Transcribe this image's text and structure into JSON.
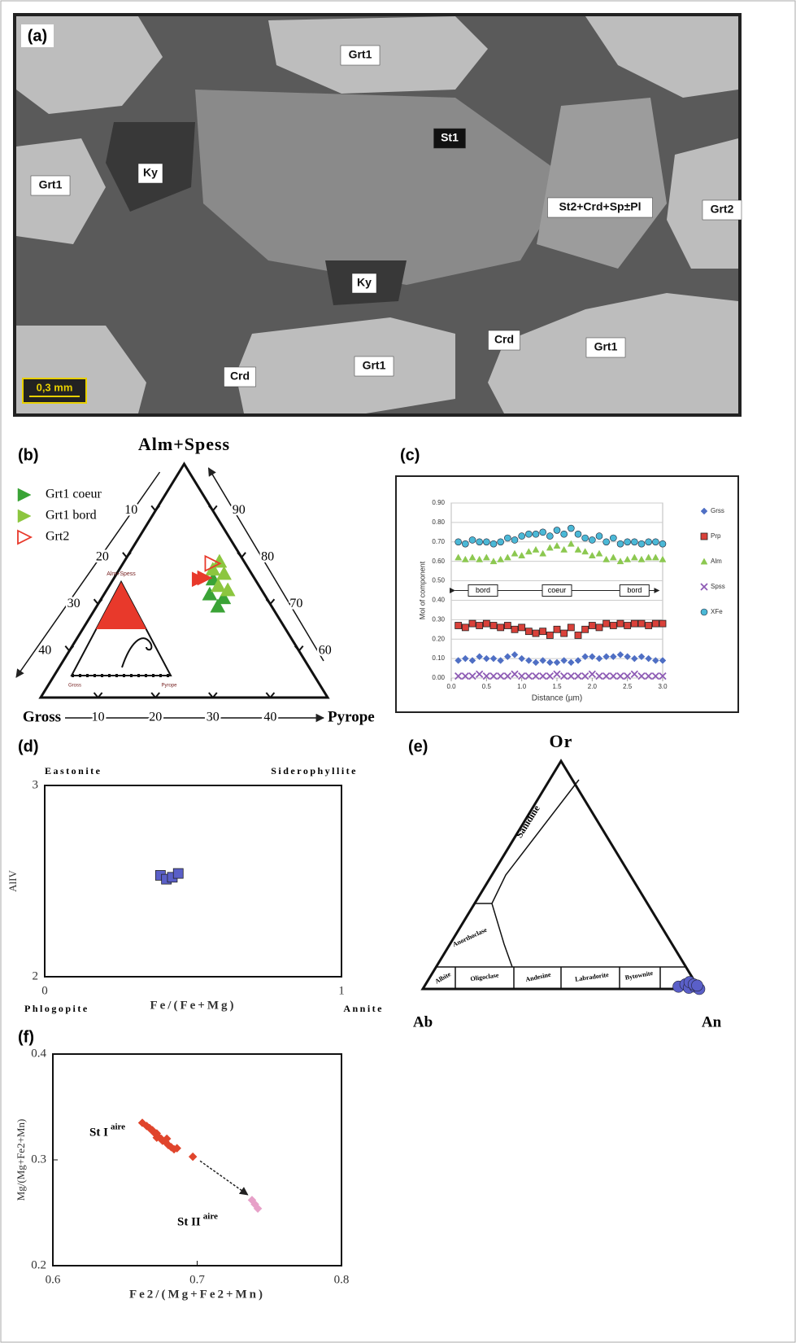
{
  "micrograph": {
    "panel_label": "(a)",
    "regions": [
      "Grt1",
      "Grt1",
      "Ky",
      "St1",
      "St2+Crd+Sp±Pl",
      "Grt2",
      "Ky",
      "Crd",
      "Crd",
      "Grt1",
      "Grt1"
    ],
    "scale": "0,3 mm"
  },
  "chart_data": [
    {
      "type": "ternary",
      "panel_label": "(b)",
      "corners": {
        "top": "Alm+Spess",
        "left": "Gross",
        "right": "Pyrope"
      },
      "top_lim": [
        50,
        100
      ],
      "left_ticks": [
        10,
        20,
        30,
        40
      ],
      "right_ticks": [
        90,
        80,
        70,
        60
      ],
      "bottom_ticks": [
        10,
        20,
        30,
        40
      ],
      "inset": {
        "top": "Alm+Spess",
        "left": "Gross",
        "right": "Pyrope"
      },
      "series": [
        {
          "name": "Grt1 coeur",
          "color": "#3aa336",
          "marker": "triangle",
          "top": [
            69.5,
            72.1,
            71.3,
            75.3
          ],
          "right": [
            21.1,
            18.4,
            21.2,
            17.4
          ]
        },
        {
          "name": "Grt1 bord",
          "color": "#8cc63f",
          "marker": "triangle",
          "top": [
            79.1,
            77.4,
            76.5,
            73.9,
            73.0
          ],
          "right": [
            16.6,
            16.3,
            18.7,
            19.0,
            21.1
          ]
        },
        {
          "name": "Grt2",
          "color": "#e8392b",
          "marker": "triangle-right-open",
          "top": [
            78.7
          ],
          "right": [
            15.6
          ]
        },
        {
          "color": "#e8392b",
          "marker": "triangle-right",
          "top": [
            75.3,
            75.6
          ],
          "right": [
            15.0,
            15.8
          ]
        }
      ]
    },
    {
      "type": "scatter",
      "panel_label": "(c)",
      "ylabel": "Mol of component",
      "xlabel": "Distance (µm)",
      "annotations": [
        "bord",
        "coeur",
        "bord"
      ],
      "grid": true,
      "x": [
        0.1,
        0.2,
        0.3,
        0.4,
        0.5,
        0.6,
        0.7,
        0.8,
        0.9,
        1.0,
        1.1,
        1.2,
        1.3,
        1.4,
        1.5,
        1.6,
        1.7,
        1.8,
        1.9,
        2.0,
        2.1,
        2.2,
        2.3,
        2.4,
        2.5,
        2.6,
        2.7,
        2.8,
        2.9,
        3.0
      ],
      "xlim": [
        0,
        3
      ],
      "xticks": [
        {
          "value": 0,
          "label": "0.0"
        },
        {
          "value": 0.5,
          "label": "0.5"
        },
        {
          "value": 1,
          "label": "1.0"
        },
        {
          "value": 1.5,
          "label": "1.5"
        },
        {
          "value": 2,
          "label": "2.0"
        },
        {
          "value": 2.5,
          "label": "2.5"
        },
        {
          "value": 3,
          "label": "3.0"
        }
      ],
      "ylim": [
        0,
        0.9
      ],
      "yticks": [
        {
          "value": 0,
          "label": "0.00"
        },
        {
          "value": 0.1,
          "label": "0.10"
        },
        {
          "value": 0.2,
          "label": "0.20"
        },
        {
          "value": 0.3,
          "label": "0.30"
        },
        {
          "value": 0.4,
          "label": "0.40"
        },
        {
          "value": 0.5,
          "label": "0.50"
        },
        {
          "value": 0.6,
          "label": "0.60"
        },
        {
          "value": 0.7,
          "label": "0.70"
        },
        {
          "value": 0.8,
          "label": "0.80"
        },
        {
          "value": 0.9,
          "label": "0.90"
        }
      ],
      "series": [
        {
          "name": "Grss",
          "color": "#4f6fc4",
          "marker": "diamond",
          "values": [
            0.09,
            0.1,
            0.09,
            0.11,
            0.1,
            0.1,
            0.09,
            0.11,
            0.12,
            0.1,
            0.09,
            0.08,
            0.09,
            0.08,
            0.08,
            0.09,
            0.08,
            0.09,
            0.11,
            0.11,
            0.1,
            0.11,
            0.11,
            0.12,
            0.11,
            0.1,
            0.11,
            0.1,
            0.09,
            0.09
          ]
        },
        {
          "name": "Prp",
          "color": "#d9413a",
          "marker": "square",
          "values": [
            0.27,
            0.26,
            0.28,
            0.27,
            0.28,
            0.27,
            0.26,
            0.27,
            0.25,
            0.26,
            0.24,
            0.23,
            0.24,
            0.22,
            0.25,
            0.23,
            0.26,
            0.22,
            0.25,
            0.27,
            0.26,
            0.28,
            0.27,
            0.28,
            0.27,
            0.28,
            0.28,
            0.27,
            0.28,
            0.28
          ]
        },
        {
          "name": "Alm",
          "color": "#8cc850",
          "marker": "triangle",
          "values": [
            0.62,
            0.61,
            0.62,
            0.61,
            0.62,
            0.6,
            0.61,
            0.62,
            0.64,
            0.63,
            0.65,
            0.66,
            0.64,
            0.67,
            0.68,
            0.66,
            0.69,
            0.66,
            0.65,
            0.63,
            0.64,
            0.61,
            0.62,
            0.6,
            0.61,
            0.62,
            0.61,
            0.62,
            0.62,
            0.61
          ]
        },
        {
          "name": "Spss",
          "color": "#8e5bb5",
          "marker": "x",
          "values": [
            0.01,
            0.01,
            0.01,
            0.02,
            0.01,
            0.01,
            0.01,
            0.01,
            0.02,
            0.01,
            0.01,
            0.01,
            0.01,
            0.01,
            0.02,
            0.01,
            0.01,
            0.01,
            0.01,
            0.02,
            0.01,
            0.01,
            0.01,
            0.01,
            0.01,
            0.02,
            0.01,
            0.01,
            0.01,
            0.01
          ]
        },
        {
          "name": "XFe",
          "color": "#4bb8d6",
          "marker": "circle",
          "values": [
            0.7,
            0.69,
            0.71,
            0.7,
            0.7,
            0.69,
            0.7,
            0.72,
            0.71,
            0.73,
            0.74,
            0.74,
            0.75,
            0.73,
            0.76,
            0.74,
            0.77,
            0.74,
            0.72,
            0.71,
            0.73,
            0.7,
            0.72,
            0.69,
            0.7,
            0.7,
            0.69,
            0.7,
            0.7,
            0.69
          ]
        }
      ]
    },
    {
      "type": "scatter",
      "panel_label": "(d)",
      "ylabel": "AlIV",
      "xlabel": "Fe/(Fe+Mg)",
      "corner_labels": {
        "top_left": "Eastonite",
        "top_right": "Siderophyllite",
        "bottom_left": "Phlogopite",
        "bottom_right": "Annite"
      },
      "xlim": [
        0,
        1
      ],
      "xticks": [
        0,
        1
      ],
      "ylim": [
        2,
        3
      ],
      "yticks": [
        2,
        3
      ],
      "series": [
        {
          "color": "#5a5fc8",
          "marker": "square",
          "x": [
            0.39,
            0.41,
            0.43,
            0.45
          ],
          "values": [
            2.53,
            2.51,
            2.52,
            2.54
          ]
        }
      ]
    },
    {
      "type": "ternary",
      "panel_label": "(e)",
      "corners": {
        "top": "Or",
        "left": "Ab",
        "right": "An"
      },
      "top_lim": [
        0,
        100
      ],
      "fields": [
        "Sanidine",
        "Anorthoclase",
        "Albite",
        "Oligoclase",
        "Andesine",
        "Labradorite",
        "Bytownite"
      ],
      "series": [
        {
          "color": "#5a5fc8",
          "marker": "circle",
          "top": [
            1,
            2,
            0.5,
            1,
            0,
            3,
            2,
            1.5
          ],
          "right": [
            92,
            94,
            96,
            98,
            100,
            95,
            97,
            98.5
          ]
        }
      ]
    },
    {
      "type": "scatter",
      "panel_label": "(f)",
      "ylabel": "Mg/(Mg+Fe2+Mn)",
      "xlabel": "Fe2/(Mg+Fe2+Mn)",
      "xlim": [
        0.6,
        0.8
      ],
      "xticks": [
        0.6,
        0.7,
        0.8
      ],
      "ylim": [
        0.2,
        0.4
      ],
      "yticks": [
        0.2,
        0.3,
        0.4
      ],
      "annotations": [
        {
          "text": "St I",
          "sup": "aire"
        },
        {
          "text": "St II",
          "sup": "aire"
        }
      ],
      "series": [
        {
          "color": "#e0452c",
          "marker": "diamond",
          "x": [
            0.662,
            0.665,
            0.667,
            0.669,
            0.67,
            0.672,
            0.673,
            0.675,
            0.676,
            0.678,
            0.68,
            0.682,
            0.684,
            0.686,
            0.697,
            0.672,
            0.679
          ],
          "values": [
            0.335,
            0.332,
            0.33,
            0.328,
            0.326,
            0.325,
            0.322,
            0.32,
            0.318,
            0.317,
            0.314,
            0.312,
            0.31,
            0.311,
            0.303,
            0.321,
            0.32
          ]
        },
        {
          "color": "#e7a0c8",
          "marker": "diamond",
          "x": [
            0.738,
            0.74,
            0.742
          ],
          "values": [
            0.262,
            0.258,
            0.254
          ]
        }
      ]
    }
  ]
}
